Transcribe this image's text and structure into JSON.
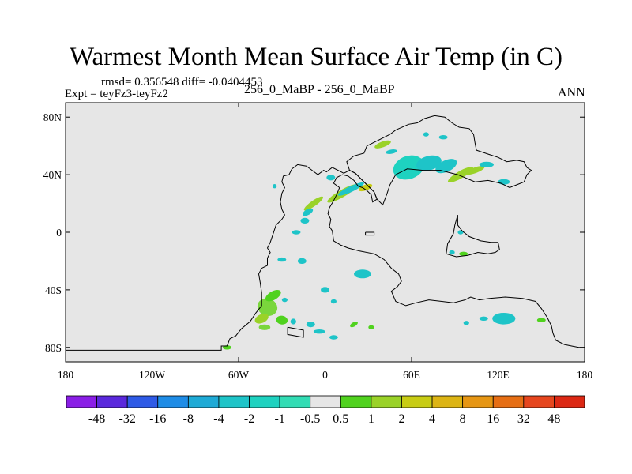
{
  "title": "Warmest Month Mean Surface Air Temp (in C)",
  "stats": "rmsd= 0.356548  diff= -0.0404453",
  "experiment": "Expt = teyFz3-teyFz2",
  "subtitle": "256_0_MaBP - 256_0_MaBP",
  "period": "ANN",
  "chart_data": {
    "type": "heatmap",
    "subtype": "filled-contour difference map",
    "xlim": [
      -180,
      180
    ],
    "ylim": [
      -90,
      90
    ],
    "x_ticks": [
      {
        "value": -180,
        "label": "180"
      },
      {
        "value": -120,
        "label": "120W"
      },
      {
        "value": -60,
        "label": "60W"
      },
      {
        "value": 0,
        "label": "0"
      },
      {
        "value": 60,
        "label": "60E"
      },
      {
        "value": 120,
        "label": "120E"
      },
      {
        "value": 180,
        "label": "180"
      }
    ],
    "y_ticks": [
      {
        "value": 80,
        "label": "80N"
      },
      {
        "value": 40,
        "label": "40N"
      },
      {
        "value": 0,
        "label": "0"
      },
      {
        "value": -40,
        "label": "40S"
      },
      {
        "value": -80,
        "label": "80S"
      }
    ],
    "background_color": "#e6e6e6",
    "colorbar": {
      "labels": [
        "-48",
        "-32",
        "-16",
        "-8",
        "-4",
        "-2",
        "-1",
        "-0.5",
        "0.5",
        "1",
        "2",
        "4",
        "8",
        "16",
        "32",
        "48"
      ],
      "colors": [
        "#8a1ee6",
        "#5a28dc",
        "#2e5ae6",
        "#1e8ce6",
        "#1eaad6",
        "#1ec4c8",
        "#1ed2c0",
        "#32dcb4",
        "#e6e6e6",
        "#50d21e",
        "#9ad228",
        "#c8cc14",
        "#dcb414",
        "#e69614",
        "#e66e14",
        "#e6461e",
        "#dc2814"
      ]
    },
    "coastlines": [
      {
        "name": "Pangaea",
        "points": [
          [
            -180,
            -82
          ],
          [
            -72,
            -82
          ],
          [
            -72,
            -79
          ],
          [
            -68,
            -79
          ],
          [
            -66,
            -74
          ],
          [
            -62,
            -72
          ],
          [
            -58,
            -67
          ],
          [
            -52,
            -62
          ],
          [
            -48,
            -56
          ],
          [
            -44,
            -51
          ],
          [
            -44,
            -42
          ],
          [
            -45,
            -35
          ],
          [
            -46,
            -29
          ],
          [
            -44,
            -25
          ],
          [
            -40,
            -23
          ],
          [
            -40,
            -18
          ],
          [
            -38,
            -14
          ],
          [
            -40,
            -11
          ],
          [
            -38,
            -7
          ],
          [
            -36,
            -1
          ],
          [
            -34,
            5
          ],
          [
            -30,
            9
          ],
          [
            -28,
            12
          ],
          [
            -30,
            16
          ],
          [
            -31,
            21
          ],
          [
            -30,
            27
          ],
          [
            -28,
            31
          ],
          [
            -30,
            35
          ],
          [
            -29,
            39
          ],
          [
            -25,
            40
          ],
          [
            -23,
            44
          ],
          [
            -19,
            47
          ],
          [
            -13,
            46
          ],
          [
            -9,
            43
          ],
          [
            -5,
            40
          ],
          [
            -1,
            43
          ],
          [
            1,
            42
          ],
          [
            5,
            45
          ],
          [
            9,
            43
          ],
          [
            13,
            41
          ],
          [
            17,
            43
          ],
          [
            21,
            41
          ],
          [
            25,
            37
          ],
          [
            29,
            33
          ],
          [
            34,
            28
          ],
          [
            36,
            23
          ],
          [
            33,
            21
          ],
          [
            32,
            26
          ],
          [
            29,
            29
          ],
          [
            26,
            31
          ],
          [
            23,
            32
          ],
          [
            20,
            36
          ],
          [
            16,
            39
          ],
          [
            12,
            40
          ],
          [
            8,
            38
          ],
          [
            6,
            34
          ],
          [
            10,
            31
          ],
          [
            8,
            26
          ],
          [
            6,
            22
          ],
          [
            3,
            17
          ],
          [
            2,
            13
          ],
          [
            4,
            9
          ],
          [
            3,
            4
          ],
          [
            5,
            1
          ],
          [
            6,
            -6
          ],
          [
            11,
            -9
          ],
          [
            16,
            -11
          ],
          [
            24,
            -13
          ],
          [
            34,
            -15
          ],
          [
            41,
            -19
          ],
          [
            46,
            -25
          ],
          [
            51,
            -29
          ],
          [
            53,
            -34
          ],
          [
            50,
            -38
          ],
          [
            46,
            -41
          ],
          [
            49,
            -48
          ],
          [
            56,
            -51
          ],
          [
            63,
            -49
          ],
          [
            72,
            -47
          ],
          [
            81,
            -48
          ],
          [
            89,
            -49
          ],
          [
            97,
            -47
          ],
          [
            101,
            -45
          ],
          [
            107,
            -47
          ],
          [
            114,
            -46
          ],
          [
            125,
            -45
          ],
          [
            137,
            -46
          ],
          [
            146,
            -48
          ],
          [
            150,
            -53
          ],
          [
            154,
            -59
          ],
          [
            157,
            -65
          ],
          [
            158,
            -70
          ],
          [
            160,
            -75
          ],
          [
            166,
            -78
          ],
          [
            171,
            -79
          ],
          [
            176,
            -80
          ],
          [
            180,
            -80
          ],
          [
            180,
            -90
          ],
          [
            -180,
            -90
          ],
          [
            -180,
            -82
          ]
        ]
      },
      {
        "name": "Cathaysia-North",
        "points": [
          [
            17,
            43
          ],
          [
            15,
            49
          ],
          [
            20,
            53
          ],
          [
            27,
            55
          ],
          [
            29,
            60
          ],
          [
            37,
            64
          ],
          [
            45,
            68
          ],
          [
            49,
            71
          ],
          [
            58,
            75
          ],
          [
            64,
            76
          ],
          [
            69,
            79
          ],
          [
            76,
            81
          ],
          [
            83,
            80
          ],
          [
            88,
            76
          ],
          [
            93,
            73
          ],
          [
            100,
            72
          ],
          [
            103,
            68
          ],
          [
            104,
            62
          ],
          [
            105,
            57
          ],
          [
            114,
            54
          ],
          [
            120,
            52
          ],
          [
            126,
            49
          ],
          [
            133,
            50
          ],
          [
            138,
            49
          ],
          [
            140,
            45
          ],
          [
            143,
            43
          ],
          [
            140,
            40
          ],
          [
            138,
            35
          ],
          [
            133,
            33
          ],
          [
            128,
            31
          ],
          [
            122,
            34
          ],
          [
            113,
            36
          ],
          [
            104,
            35
          ],
          [
            92,
            40
          ],
          [
            80,
            43
          ],
          [
            68,
            43
          ],
          [
            57,
            44
          ],
          [
            49,
            40
          ],
          [
            45,
            33
          ],
          [
            43,
            27
          ],
          [
            40,
            19
          ],
          [
            36,
            23
          ],
          [
            34,
            28
          ],
          [
            29,
            33
          ],
          [
            25,
            37
          ],
          [
            21,
            41
          ],
          [
            17,
            43
          ]
        ]
      },
      {
        "name": "South-China",
        "points": [
          [
            92,
            12
          ],
          [
            90,
            5
          ],
          [
            89,
            -1
          ],
          [
            85,
            -8
          ],
          [
            84,
            -15
          ],
          [
            91,
            -17
          ],
          [
            99,
            -16
          ],
          [
            106,
            -14
          ],
          [
            113,
            -15
          ],
          [
            118,
            -14
          ],
          [
            121,
            -12
          ],
          [
            120,
            -7
          ],
          [
            115,
            -7
          ],
          [
            108,
            -6
          ],
          [
            100,
            -3
          ],
          [
            95,
            1
          ],
          [
            92,
            5
          ],
          [
            92,
            12
          ]
        ]
      },
      {
        "name": "Antarctic-Island",
        "points": [
          [
            -26,
            -66
          ],
          [
            -26,
            -71
          ],
          [
            -15,
            -73
          ],
          [
            -15,
            -68
          ],
          [
            -26,
            -66
          ]
        ]
      },
      {
        "name": "Small-Island",
        "points": [
          [
            28,
            0
          ],
          [
            34,
            0
          ],
          [
            34,
            -2
          ],
          [
            28,
            -2
          ],
          [
            28,
            0
          ]
        ]
      }
    ],
    "anomaly_patches": [
      {
        "lon": -40,
        "lat": -52,
        "rx": 7,
        "ry": 6,
        "rot": 20,
        "color": "#7ad63c"
      },
      {
        "lon": -36,
        "lat": -44,
        "rx": 6,
        "ry": 3,
        "rot": -30,
        "color": "#50d21e"
      },
      {
        "lon": -44,
        "lat": -60,
        "rx": 5,
        "ry": 3,
        "rot": -25,
        "color": "#9ad228"
      },
      {
        "lon": -30,
        "lat": -61,
        "rx": 4,
        "ry": 3,
        "rot": 10,
        "color": "#50d21e"
      },
      {
        "lon": -42,
        "lat": -66,
        "rx": 4,
        "ry": 2,
        "rot": 0,
        "color": "#7ad63c"
      },
      {
        "lon": -22,
        "lat": -62,
        "rx": 2,
        "ry": 2,
        "rot": 0,
        "color": "#1ec4c8"
      },
      {
        "lon": -10,
        "lat": -64,
        "rx": 3,
        "ry": 2,
        "rot": 0,
        "color": "#1ec4c8"
      },
      {
        "lon": -28,
        "lat": -47,
        "rx": 2,
        "ry": 1.5,
        "rot": 0,
        "color": "#1ec4c8"
      },
      {
        "lon": -68,
        "lat": -80,
        "rx": 3,
        "ry": 1.5,
        "rot": 0,
        "color": "#50d21e"
      },
      {
        "lon": -4,
        "lat": -69,
        "rx": 4,
        "ry": 1.5,
        "rot": 0,
        "color": "#1ec4c8"
      },
      {
        "lon": 6,
        "lat": -73,
        "rx": 3,
        "ry": 1.5,
        "rot": 0,
        "color": "#1ec4c8"
      },
      {
        "lon": 20,
        "lat": -64,
        "rx": 3,
        "ry": 1.5,
        "rot": -30,
        "color": "#50d21e"
      },
      {
        "lon": 32,
        "lat": -66,
        "rx": 2,
        "ry": 1.5,
        "rot": 0,
        "color": "#50d21e"
      },
      {
        "lon": -14,
        "lat": 8,
        "rx": 3,
        "ry": 2,
        "rot": 0,
        "color": "#1ec4c8"
      },
      {
        "lon": -8,
        "lat": 20,
        "rx": 8,
        "ry": 2,
        "rot": -35,
        "color": "#9ad228"
      },
      {
        "lon": -12,
        "lat": 14,
        "rx": 4,
        "ry": 2,
        "rot": -30,
        "color": "#1ec4c8"
      },
      {
        "lon": 12,
        "lat": 27,
        "rx": 12,
        "ry": 2.5,
        "rot": -30,
        "color": "#9ad228"
      },
      {
        "lon": 18,
        "lat": 30,
        "rx": 10,
        "ry": 2,
        "rot": -25,
        "color": "#1ec4c8"
      },
      {
        "lon": 4,
        "lat": 38,
        "rx": 3,
        "ry": 2,
        "rot": 0,
        "color": "#1ec4c8"
      },
      {
        "lon": 28,
        "lat": 31,
        "rx": 5,
        "ry": 2,
        "rot": -20,
        "color": "#c8cc14"
      },
      {
        "lon": -20,
        "lat": 0,
        "rx": 3,
        "ry": 1.5,
        "rot": 0,
        "color": "#1ec4c8"
      },
      {
        "lon": -30,
        "lat": -19,
        "rx": 3,
        "ry": 1.5,
        "rot": 0,
        "color": "#1ec4c8"
      },
      {
        "lon": -16,
        "lat": -20,
        "rx": 3,
        "ry": 2,
        "rot": 0,
        "color": "#1ec4c8"
      },
      {
        "lon": 0,
        "lat": -40,
        "rx": 3,
        "ry": 2,
        "rot": 0,
        "color": "#1ec4c8"
      },
      {
        "lon": 26,
        "lat": -29,
        "rx": 6,
        "ry": 3,
        "rot": 0,
        "color": "#1ec4c8"
      },
      {
        "lon": 6,
        "lat": -48,
        "rx": 2,
        "ry": 1.5,
        "rot": 0,
        "color": "#1ec4c8"
      },
      {
        "lon": -35,
        "lat": 32,
        "rx": 1.5,
        "ry": 1.5,
        "rot": 0,
        "color": "#1ec4c8"
      },
      {
        "lon": 58,
        "lat": 45,
        "rx": 11,
        "ry": 8,
        "rot": -20,
        "color": "#1ed2c0"
      },
      {
        "lon": 72,
        "lat": 48,
        "rx": 9,
        "ry": 5,
        "rot": -15,
        "color": "#1ec4c8"
      },
      {
        "lon": 84,
        "lat": 46,
        "rx": 8,
        "ry": 4,
        "rot": -25,
        "color": "#1ec4c8"
      },
      {
        "lon": 94,
        "lat": 40,
        "rx": 10,
        "ry": 2.5,
        "rot": -30,
        "color": "#9ad228"
      },
      {
        "lon": 104,
        "lat": 43,
        "rx": 7,
        "ry": 2,
        "rot": -20,
        "color": "#9ad228"
      },
      {
        "lon": 112,
        "lat": 47,
        "rx": 5,
        "ry": 2,
        "rot": 0,
        "color": "#1ec4c8"
      },
      {
        "lon": 124,
        "lat": 35,
        "rx": 4,
        "ry": 2,
        "rot": 0,
        "color": "#1ec4c8"
      },
      {
        "lon": 40,
        "lat": 61,
        "rx": 6,
        "ry": 2,
        "rot": -20,
        "color": "#9ad228"
      },
      {
        "lon": 46,
        "lat": 56,
        "rx": 4,
        "ry": 1.5,
        "rot": -10,
        "color": "#1ec4c8"
      },
      {
        "lon": 82,
        "lat": 66,
        "rx": 3,
        "ry": 1.5,
        "rot": 0,
        "color": "#1ec4c8"
      },
      {
        "lon": 70,
        "lat": 68,
        "rx": 2,
        "ry": 1.5,
        "rot": 0,
        "color": "#1ec4c8"
      },
      {
        "lon": 96,
        "lat": -15,
        "rx": 3,
        "ry": 1.5,
        "rot": 0,
        "color": "#50d21e"
      },
      {
        "lon": 88,
        "lat": -14,
        "rx": 2,
        "ry": 1.5,
        "rot": 0,
        "color": "#1ec4c8"
      },
      {
        "lon": 94,
        "lat": 0,
        "rx": 2,
        "ry": 1.5,
        "rot": 0,
        "color": "#1ec4c8"
      },
      {
        "lon": 124,
        "lat": -60,
        "rx": 8,
        "ry": 4,
        "rot": 0,
        "color": "#1ec4c8"
      },
      {
        "lon": 110,
        "lat": -60,
        "rx": 3,
        "ry": 1.5,
        "rot": 0,
        "color": "#1ec4c8"
      },
      {
        "lon": 150,
        "lat": -61,
        "rx": 3,
        "ry": 1.5,
        "rot": 0,
        "color": "#50d21e"
      },
      {
        "lon": 98,
        "lat": -63,
        "rx": 2,
        "ry": 1.5,
        "rot": 0,
        "color": "#1ec4c8"
      }
    ]
  }
}
